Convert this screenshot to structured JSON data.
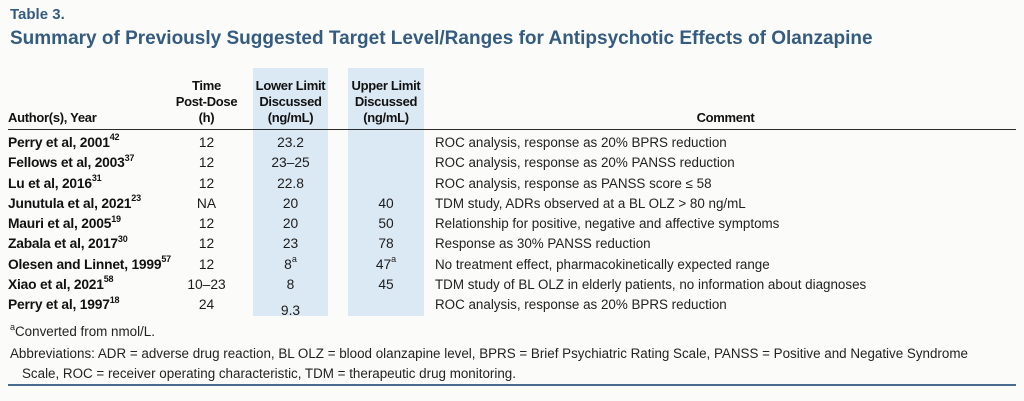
{
  "label": "Table 3.",
  "title": "Summary of Previously Suggested Target Level/Ranges for Antipsychotic Effects of Olanzapine",
  "accent_color": "#355b80",
  "highlight_color": "#dbe9f4",
  "table": {
    "headers": {
      "author": "Author(s), Year",
      "time": "Time\nPost-Dose\n(h)",
      "lower": "Lower Limit\nDiscussed\n(ng/mL)",
      "upper": "Upper Limit\nDiscussed\n(ng/mL)",
      "comment": "Comment"
    },
    "rows": [
      {
        "author": "Perry et al, 2001",
        "ref": "42",
        "time": "12",
        "lower": "23.2",
        "lower_sup": "",
        "upper": "",
        "upper_sup": "",
        "comment": "ROC analysis, response as 20% BPRS reduction"
      },
      {
        "author": "Fellows et al, 2003",
        "ref": "37",
        "time": "12",
        "lower": "23–25",
        "lower_sup": "",
        "upper": "",
        "upper_sup": "",
        "comment": "ROC analysis, response as 20% PANSS reduction"
      },
      {
        "author": "Lu et al, 2016",
        "ref": "31",
        "time": "12",
        "lower": "22.8",
        "lower_sup": "",
        "upper": "",
        "upper_sup": "",
        "comment": "ROC analysis, response as PANSS score ≤ 58"
      },
      {
        "author": "Junutula et al, 2021",
        "ref": "23",
        "time": "NA",
        "lower": "20",
        "lower_sup": "",
        "upper": "40",
        "upper_sup": "",
        "comment": "TDM study, ADRs observed at a BL OLZ > 80 ng/mL"
      },
      {
        "author": "Mauri et al, 2005",
        "ref": "19",
        "time": "12",
        "lower": "20",
        "lower_sup": "",
        "upper": "50",
        "upper_sup": "",
        "comment": "Relationship for positive, negative and affective symptoms"
      },
      {
        "author": "Zabala et al, 2017",
        "ref": "30",
        "time": "12",
        "lower": "23",
        "lower_sup": "",
        "upper": "78",
        "upper_sup": "",
        "comment": "Response as 30% PANSS reduction"
      },
      {
        "author": "Olesen and Linnet, 1999",
        "ref": "57",
        "time": "12",
        "lower": "8",
        "lower_sup": "a",
        "upper": "47",
        "upper_sup": "a",
        "comment": "No treatment effect, pharmacokinetically expected range"
      },
      {
        "author": "Xiao et al, 2021",
        "ref": "58",
        "time": "10–23",
        "lower": "8",
        "lower_sup": "",
        "upper": "45",
        "upper_sup": "",
        "comment": "TDM study of BL OLZ in elderly patients, no information about diagnoses"
      },
      {
        "author": "Perry et al, 1997",
        "ref": "18",
        "time": "24",
        "lower": "9.3",
        "lower_sup": "",
        "upper": "",
        "upper_sup": "",
        "comment": "ROC analysis, response as 20% BPRS reduction"
      }
    ]
  },
  "footnotes": {
    "marker": "a",
    "converted": "Converted from nmol/L.",
    "abbrev_line1": "Abbreviations: ADR = adverse drug reaction, BL OLZ = blood olanzapine level, BPRS = Brief Psychiatric Rating Scale, PANSS = Positive and Negative Syndrome",
    "abbrev_line2": "Scale, ROC = receiver operating characteristic, TDM = therapeutic drug monitoring."
  }
}
